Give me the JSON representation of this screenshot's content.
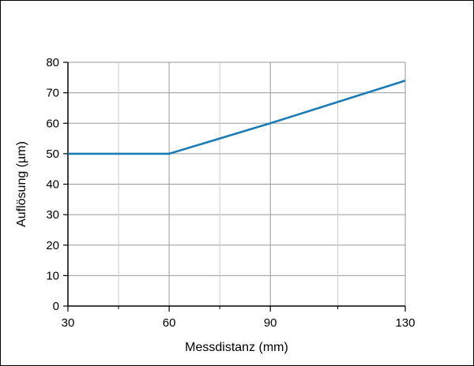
{
  "chart_data": {
    "type": "line",
    "title": "",
    "xlabel": "Messdistanz (mm)",
    "ylabel": "Auflösung (µm)",
    "xlim": [
      30,
      130
    ],
    "ylim": [
      0,
      80
    ],
    "x_major_ticks": [
      30,
      60,
      90,
      130
    ],
    "x_minor_gridlines": [
      45,
      75,
      110
    ],
    "y_ticks": [
      0,
      10,
      20,
      30,
      40,
      50,
      60,
      70,
      80
    ],
    "x_tick_labels": [
      "30",
      "60",
      "90",
      "130"
    ],
    "y_tick_labels": [
      "0",
      "10",
      "20",
      "30",
      "40",
      "50",
      "60",
      "70",
      "80"
    ],
    "grid": true,
    "series": [
      {
        "x": [
          30,
          60,
          90,
          130
        ],
        "y": [
          50,
          50,
          60,
          74
        ],
        "color": "#1a7bb5"
      }
    ],
    "colors": {
      "line": "#1a7bb5",
      "major_grid": "#999999",
      "minor_grid": "#cccccc",
      "axis": "#000000"
    }
  }
}
